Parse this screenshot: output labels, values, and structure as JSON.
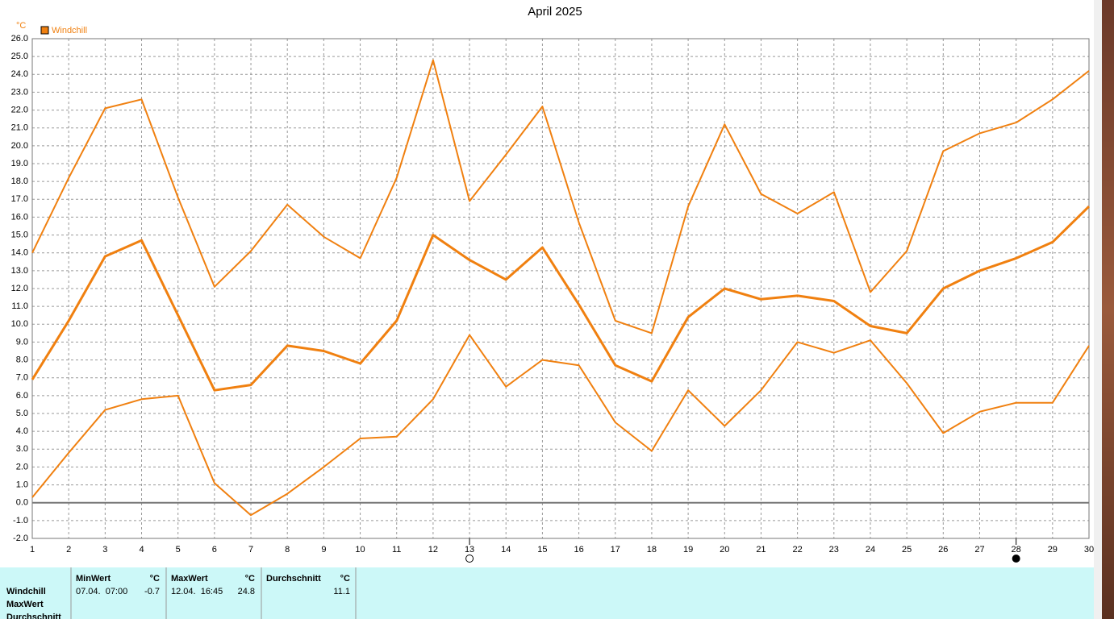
{
  "chart_data": {
    "type": "line",
    "title": "April 2025",
    "y_unit": "°C",
    "legend": "Windchill",
    "legend_color": "#f08010",
    "grid": true,
    "x": [
      1,
      2,
      3,
      4,
      5,
      6,
      7,
      8,
      9,
      10,
      11,
      12,
      13,
      14,
      15,
      16,
      17,
      18,
      19,
      20,
      21,
      22,
      23,
      24,
      25,
      26,
      27,
      28,
      29,
      30
    ],
    "xlim": [
      1,
      30
    ],
    "xticks": [
      1,
      2,
      3,
      4,
      5,
      6,
      7,
      8,
      9,
      10,
      11,
      12,
      13,
      14,
      15,
      16,
      17,
      18,
      19,
      20,
      21,
      22,
      23,
      24,
      25,
      26,
      27,
      28,
      29,
      30
    ],
    "ylim": [
      -2,
      26
    ],
    "yticks": [
      {
        "value": -2,
        "label": "-2.0"
      },
      {
        "value": -1,
        "label": "-1.0"
      },
      {
        "value": 0,
        "label": "0.0"
      },
      {
        "value": 1,
        "label": "1.0"
      },
      {
        "value": 2,
        "label": "2.0"
      },
      {
        "value": 3,
        "label": "3.0"
      },
      {
        "value": 4,
        "label": "4.0"
      },
      {
        "value": 5,
        "label": "5.0"
      },
      {
        "value": 6,
        "label": "6.0"
      },
      {
        "value": 7,
        "label": "7.0"
      },
      {
        "value": 8,
        "label": "8.0"
      },
      {
        "value": 9,
        "label": "9.0"
      },
      {
        "value": 10,
        "label": "10.0"
      },
      {
        "value": 11,
        "label": "11.0"
      },
      {
        "value": 12,
        "label": "12.0"
      },
      {
        "value": 13,
        "label": "13.0"
      },
      {
        "value": 14,
        "label": "14.0"
      },
      {
        "value": 15,
        "label": "15.0"
      },
      {
        "value": 16,
        "label": "16.0"
      },
      {
        "value": 17,
        "label": "17.0"
      },
      {
        "value": 18,
        "label": "18.0"
      },
      {
        "value": 19,
        "label": "19.0"
      },
      {
        "value": 20,
        "label": "20.0"
      },
      {
        "value": 21,
        "label": "21.0"
      },
      {
        "value": 22,
        "label": "22.0"
      },
      {
        "value": 23,
        "label": "23.0"
      },
      {
        "value": 24,
        "label": "24.0"
      },
      {
        "value": 25,
        "label": "25.0"
      },
      {
        "value": 26,
        "label": "26.0"
      }
    ],
    "series": [
      {
        "color": "#f08010",
        "width": 2,
        "values": [
          14.0,
          18.2,
          22.1,
          22.6,
          17.1,
          12.1,
          14.1,
          16.7,
          14.9,
          13.7,
          18.2,
          24.8,
          16.9,
          19.5,
          22.2,
          15.7,
          10.2,
          9.5,
          16.6,
          21.2,
          17.3,
          16.2,
          17.4,
          11.8,
          14.1,
          19.7,
          20.7,
          21.3,
          22.6,
          24.2
        ]
      },
      {
        "color": "#f08010",
        "width": 3,
        "values": [
          6.9,
          10.2,
          13.8,
          14.7,
          10.5,
          6.3,
          6.6,
          8.8,
          8.5,
          7.8,
          10.2,
          15.0,
          13.6,
          12.5,
          14.3,
          11.1,
          7.7,
          6.8,
          10.4,
          12.0,
          11.4,
          11.6,
          11.3,
          9.9,
          9.5,
          12.0,
          13.0,
          13.7,
          14.6,
          16.6
        ]
      },
      {
        "color": "#f08010",
        "width": 2,
        "values": [
          0.3,
          2.8,
          5.2,
          5.8,
          6.0,
          1.1,
          -0.7,
          0.5,
          2.0,
          3.6,
          3.7,
          5.8,
          9.4,
          6.5,
          8.0,
          7.7,
          4.5,
          2.9,
          6.3,
          4.3,
          6.3,
          9.0,
          8.4,
          9.1,
          6.7,
          3.9,
          5.1,
          5.6,
          5.6,
          8.8
        ]
      }
    ],
    "markers": [
      {
        "x": 13,
        "filled": false
      },
      {
        "x": 28,
        "filled": true
      }
    ]
  },
  "table": {
    "row_labels": [
      "Windchill",
      "MaxWert",
      "Durchschnitt"
    ],
    "columns": [
      {
        "header": "MinWert",
        "unit": "°C",
        "date": "07.04.  07:00",
        "value": "-0.7"
      },
      {
        "header": "MaxWert",
        "unit": "°C",
        "date": "12.04.  16:45",
        "value": "24.8"
      },
      {
        "header": "Durchschnitt",
        "unit": "°C",
        "value": "11.1"
      }
    ]
  }
}
